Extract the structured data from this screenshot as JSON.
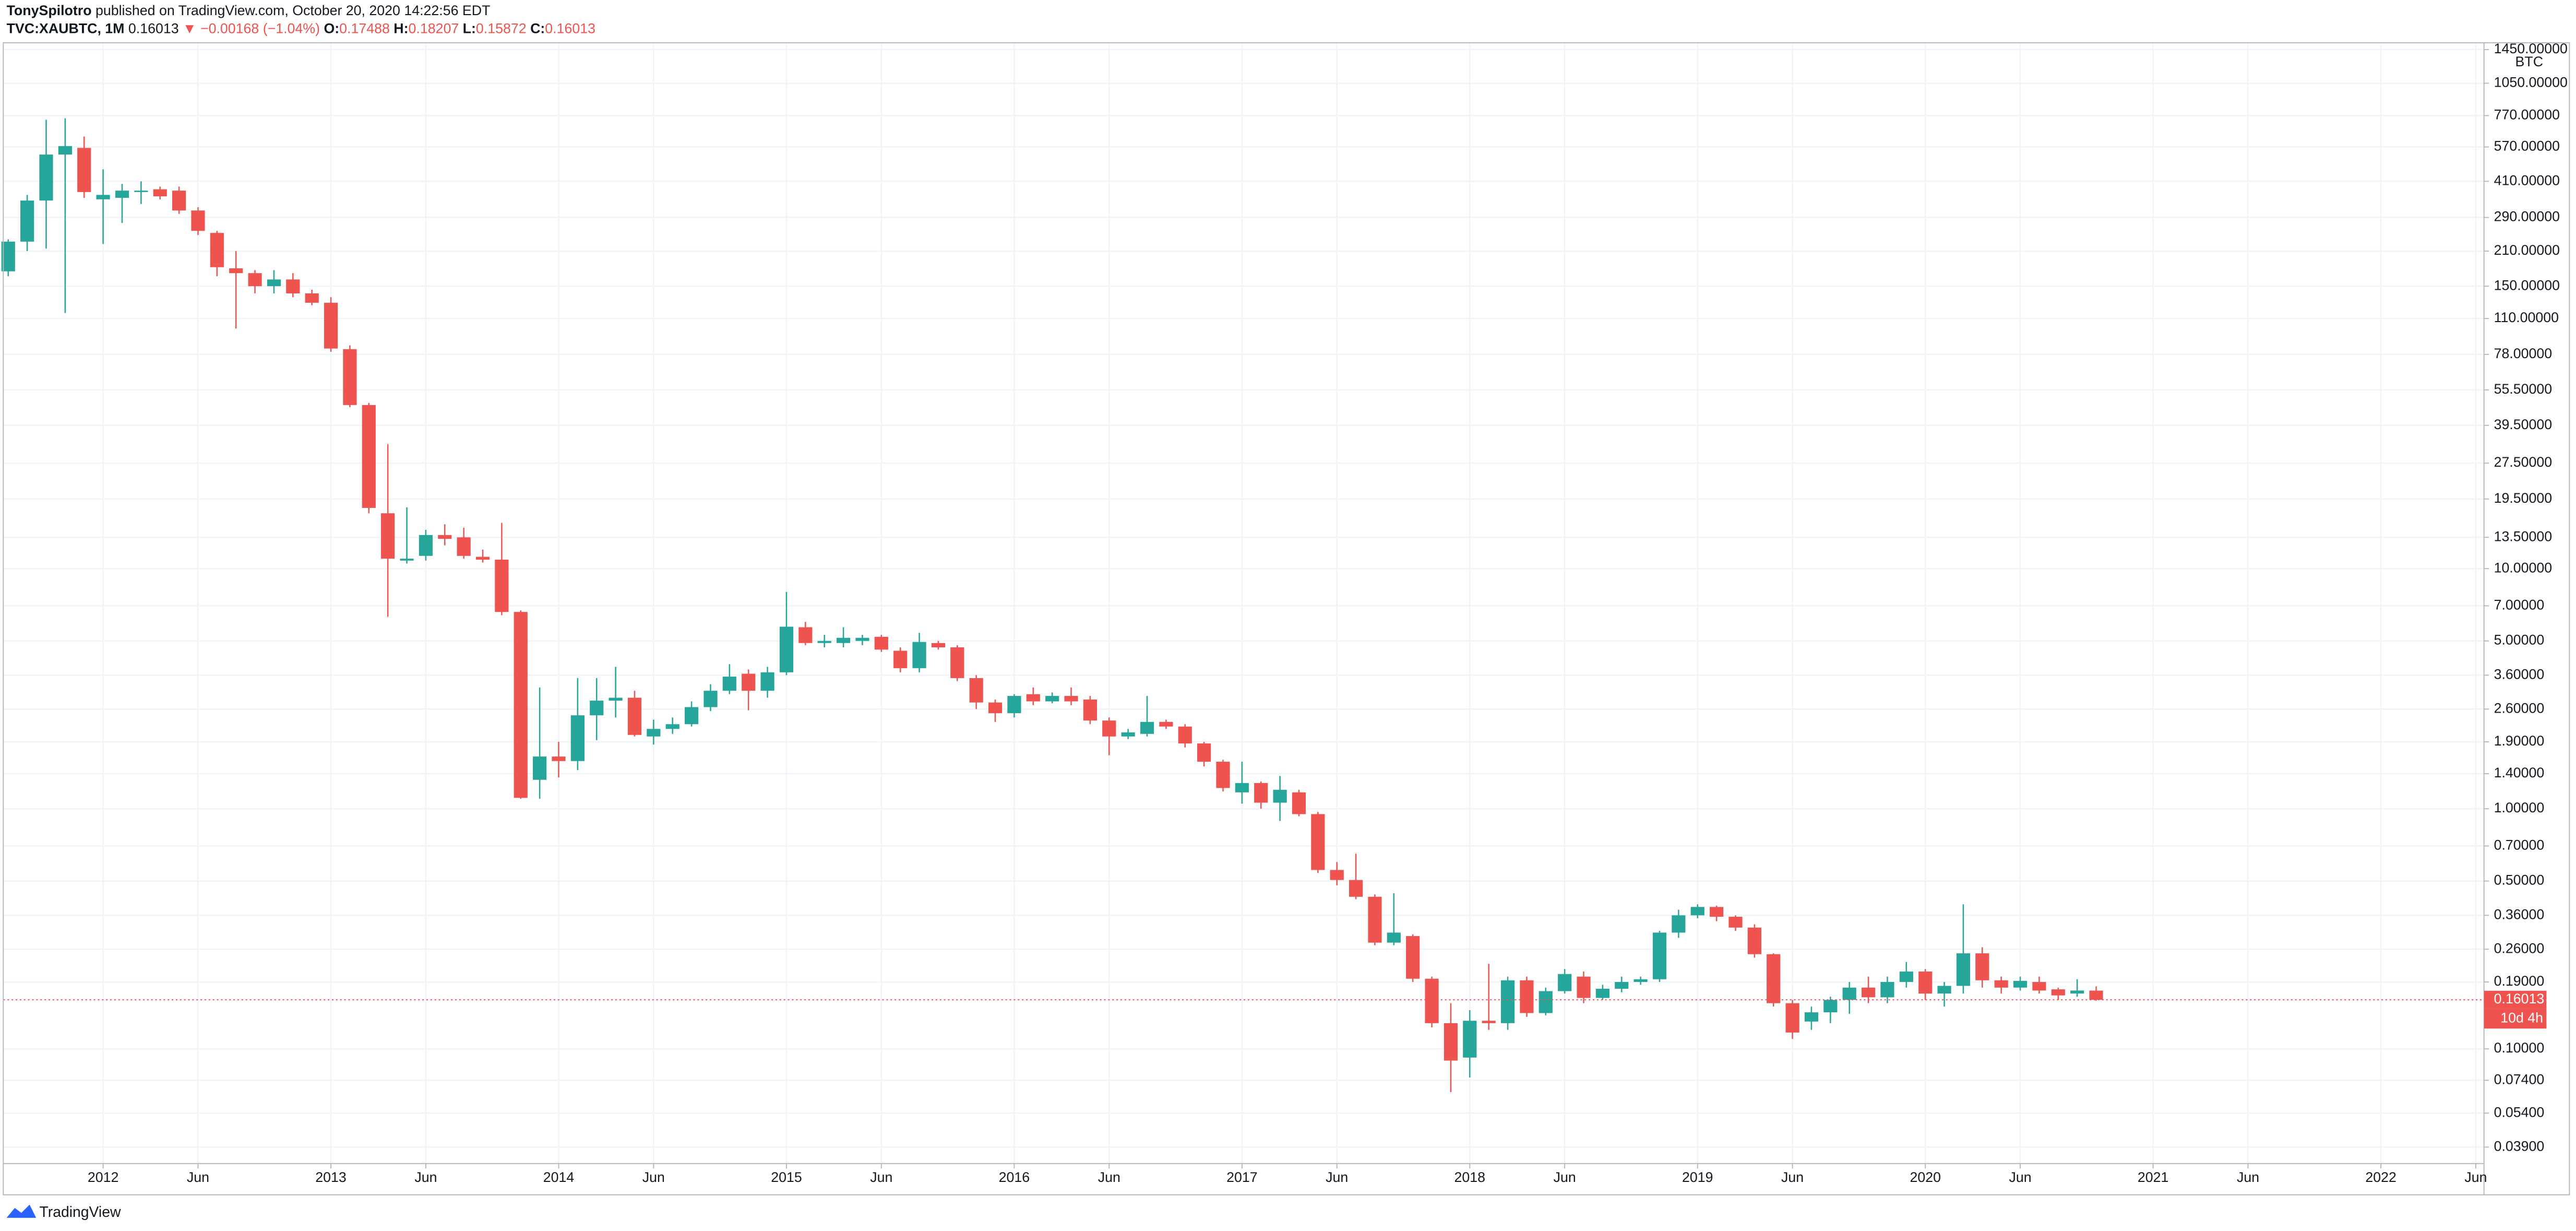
{
  "header": {
    "author": "TonySpilotro",
    "published": "published on TradingView.com, October 20, 2020 14:22:56 EDT",
    "symbol": "TVC:XAUBTC, 1M",
    "last": "0.16013",
    "change": "▼ −0.00168 (−1.04%)",
    "o_label": "O:",
    "o_value": "0.17488",
    "h_label": "H:",
    "h_value": "0.18207",
    "l_label": "L:",
    "l_value": "0.15872",
    "c_label": "C:",
    "c_value": "0.16013"
  },
  "footer": {
    "brand": "TradingView"
  },
  "chart_data": {
    "type": "candlestick",
    "log_scale": true,
    "grid": true,
    "up_color": "#26a69a",
    "down_color": "#ef5350",
    "y_unit": "BTC",
    "last_price_label": "0.16013",
    "countdown": "10d 4h",
    "x": [
      "2011-08",
      "2011-09",
      "2011-10",
      "2011-11",
      "2011-12",
      "2012-01",
      "2012-02",
      "2012-03",
      "2012-04",
      "2012-05",
      "2012-06",
      "2012-07",
      "2012-08",
      "2012-09",
      "2012-10",
      "2012-11",
      "2012-12",
      "2013-01",
      "2013-02",
      "2013-03",
      "2013-04",
      "2013-05",
      "2013-06",
      "2013-07",
      "2013-08",
      "2013-09",
      "2013-10",
      "2013-11",
      "2013-12",
      "2014-01",
      "2014-02",
      "2014-03",
      "2014-04",
      "2014-05",
      "2014-06",
      "2014-07",
      "2014-08",
      "2014-09",
      "2014-10",
      "2014-11",
      "2014-12",
      "2015-01",
      "2015-02",
      "2015-03",
      "2015-04",
      "2015-05",
      "2015-06",
      "2015-07",
      "2015-08",
      "2015-09",
      "2015-10",
      "2015-11",
      "2015-12",
      "2016-01",
      "2016-02",
      "2016-03",
      "2016-04",
      "2016-05",
      "2016-06",
      "2016-07",
      "2016-08",
      "2016-09",
      "2016-10",
      "2016-11",
      "2016-12",
      "2017-01",
      "2017-02",
      "2017-03",
      "2017-04",
      "2017-05",
      "2017-06",
      "2017-07",
      "2017-08",
      "2017-09",
      "2017-10",
      "2017-11",
      "2017-12",
      "2018-01",
      "2018-02",
      "2018-03",
      "2018-04",
      "2018-05",
      "2018-06",
      "2018-07",
      "2018-08",
      "2018-09",
      "2018-10",
      "2018-11",
      "2018-12",
      "2019-01",
      "2019-02",
      "2019-03",
      "2019-04",
      "2019-05",
      "2019-06",
      "2019-07",
      "2019-08",
      "2019-09",
      "2019-10",
      "2019-11",
      "2019-12",
      "2020-01",
      "2020-02",
      "2020-03",
      "2020-04",
      "2020-05",
      "2020-06",
      "2020-07",
      "2020-08",
      "2020-09",
      "2020-10"
    ],
    "open": [
      173,
      230,
      341,
      530,
      565,
      345,
      350,
      370,
      380,
      375,
      310,
      250,
      178,
      170,
      150,
      160,
      140,
      128,
      82,
      48,
      17,
      10.8,
      11.3,
      13.8,
      13.5,
      11.2,
      10.9,
      6.6,
      1.32,
      1.65,
      1.58,
      2.45,
      2.82,
      2.9,
      2.0,
      2.15,
      2.25,
      2.65,
      3.1,
      3.65,
      3.1,
      3.7,
      5.7,
      4.9,
      4.9,
      5.0,
      5.2,
      4.55,
      3.85,
      4.9,
      4.7,
      3.5,
      2.77,
      2.5,
      3.0,
      2.8,
      2.95,
      2.85,
      2.33,
      2.0,
      2.05,
      2.3,
      2.2,
      1.87,
      1.57,
      1.17,
      1.28,
      1.06,
      1.17,
      0.95,
      0.556,
      0.505,
      0.43,
      0.277,
      0.295,
      0.196,
      0.128,
      0.092,
      0.131,
      0.128,
      0.193,
      0.141,
      0.174,
      0.2,
      0.163,
      0.178,
      0.19,
      0.195,
      0.305,
      0.36,
      0.39,
      0.355,
      0.32,
      0.248,
      0.155,
      0.13,
      0.142,
      0.16,
      0.18,
      0.164,
      0.19,
      0.21,
      0.17,
      0.183,
      0.25,
      0.193,
      0.18,
      0.19,
      0.177,
      0.17,
      0.17488
    ],
    "high": [
      235,
      360,
      740,
      750,
      630,
      460,
      400,
      410,
      390,
      390,
      320,
      255,
      210,
      175,
      175,
      170,
      145,
      135,
      85,
      49,
      33,
      18,
      14.5,
      15.3,
      14.8,
      12,
      15.5,
      6.7,
      3.2,
      1.9,
      3.5,
      3.5,
      3.9,
      3.1,
      2.35,
      2.4,
      2.8,
      3.3,
      4.0,
      3.8,
      3.9,
      8.0,
      6.0,
      5.3,
      5.7,
      5.3,
      5.3,
      4.7,
      5.4,
      5.0,
      4.8,
      3.6,
      2.85,
      3.0,
      3.2,
      3.05,
      3.2,
      2.95,
      2.4,
      2.15,
      2.95,
      2.35,
      2.25,
      1.9,
      1.6,
      1.57,
      1.3,
      1.37,
      1.2,
      0.97,
      0.6,
      0.65,
      0.44,
      0.445,
      0.3,
      0.2,
      0.155,
      0.145,
      0.226,
      0.2,
      0.2,
      0.18,
      0.215,
      0.21,
      0.185,
      0.2,
      0.2,
      0.31,
      0.38,
      0.4,
      0.395,
      0.36,
      0.33,
      0.25,
      0.16,
      0.15,
      0.165,
      0.19,
      0.2,
      0.2,
      0.23,
      0.215,
      0.19,
      0.4,
      0.265,
      0.2,
      0.2,
      0.2,
      0.18,
      0.195,
      0.18207
    ],
    "low": [
      165,
      210,
      215,
      116,
      350,
      225,
      275,
      330,
      345,
      300,
      245,
      165,
      100,
      140,
      140,
      135,
      125,
      80,
      47,
      17,
      6.3,
      10.5,
      10.8,
      12.5,
      11,
      10.6,
      6.4,
      1.1,
      1.1,
      1.35,
      1.45,
      1.93,
      2.4,
      2.0,
      1.85,
      2.05,
      2.2,
      2.55,
      3.0,
      2.57,
      2.9,
      3.6,
      4.8,
      4.7,
      4.7,
      4.8,
      4.5,
      3.7,
      3.7,
      4.6,
      3.4,
      2.6,
      2.3,
      2.4,
      2.7,
      2.75,
      2.7,
      2.25,
      1.67,
      1.95,
      2.0,
      2.15,
      1.8,
      1.5,
      1.18,
      1.05,
      1.0,
      0.89,
      0.93,
      0.54,
      0.48,
      0.42,
      0.27,
      0.27,
      0.19,
      0.123,
      0.066,
      0.076,
      0.12,
      0.12,
      0.136,
      0.138,
      0.17,
      0.155,
      0.16,
      0.172,
      0.185,
      0.19,
      0.29,
      0.35,
      0.34,
      0.31,
      0.24,
      0.15,
      0.11,
      0.12,
      0.128,
      0.14,
      0.155,
      0.155,
      0.18,
      0.16,
      0.15,
      0.17,
      0.18,
      0.17,
      0.175,
      0.17,
      0.16,
      0.165,
      0.15872
    ],
    "close": [
      230,
      341,
      530,
      575,
      370,
      360,
      375,
      375,
      355,
      310,
      255,
      180,
      170,
      150,
      160,
      140,
      128,
      82.5,
      48,
      17.9,
      11,
      11,
      13.8,
      13.3,
      11.3,
      10.9,
      6.6,
      1.11,
      1.65,
      1.58,
      2.45,
      2.82,
      2.9,
      2.03,
      2.15,
      2.25,
      2.65,
      3.1,
      3.55,
      3.1,
      3.7,
      5.73,
      4.9,
      5.0,
      5.15,
      5.15,
      4.6,
      3.85,
      4.95,
      4.7,
      3.5,
      2.77,
      2.5,
      2.95,
      2.8,
      2.95,
      2.8,
      2.33,
      2.0,
      2.08,
      2.3,
      2.2,
      1.87,
      1.57,
      1.22,
      1.28,
      1.06,
      1.2,
      0.95,
      0.556,
      0.505,
      0.43,
      0.277,
      0.305,
      0.196,
      0.128,
      0.0894,
      0.131,
      0.128,
      0.193,
      0.141,
      0.174,
      0.205,
      0.163,
      0.178,
      0.19,
      0.195,
      0.305,
      0.36,
      0.39,
      0.355,
      0.32,
      0.248,
      0.155,
      0.117,
      0.142,
      0.16,
      0.18,
      0.164,
      0.19,
      0.21,
      0.17,
      0.183,
      0.25,
      0.193,
      0.18,
      0.192,
      0.175,
      0.167,
      0.175,
      0.16013
    ],
    "xlim": [
      "2011-08",
      "2022-06"
    ],
    "xticks": [
      {
        "value": "2012-01",
        "label": "2012"
      },
      {
        "value": "2012-06",
        "label": "Jun"
      },
      {
        "value": "2013-01",
        "label": "2013"
      },
      {
        "value": "2013-06",
        "label": "Jun"
      },
      {
        "value": "2014-01",
        "label": "2014"
      },
      {
        "value": "2014-06",
        "label": "Jun"
      },
      {
        "value": "2015-01",
        "label": "2015"
      },
      {
        "value": "2015-06",
        "label": "Jun"
      },
      {
        "value": "2016-01",
        "label": "2016"
      },
      {
        "value": "2016-06",
        "label": "Jun"
      },
      {
        "value": "2017-01",
        "label": "2017"
      },
      {
        "value": "2017-06",
        "label": "Jun"
      },
      {
        "value": "2018-01",
        "label": "2018"
      },
      {
        "value": "2018-06",
        "label": "Jun"
      },
      {
        "value": "2019-01",
        "label": "2019"
      },
      {
        "value": "2019-06",
        "label": "Jun"
      },
      {
        "value": "2020-01",
        "label": "2020"
      },
      {
        "value": "2020-06",
        "label": "Jun"
      },
      {
        "value": "2021-01",
        "label": "2021"
      },
      {
        "value": "2021-06",
        "label": "Jun"
      },
      {
        "value": "2022-01",
        "label": "2022"
      },
      {
        "value": "2022-06",
        "label": "Jun"
      }
    ],
    "ylim": [
      0.0333,
      1500
    ],
    "yticks": [
      {
        "value": 1450,
        "label": "1450.00000"
      },
      {
        "value": 1050,
        "label": "1050.00000"
      },
      {
        "value": 770,
        "label": "770.00000"
      },
      {
        "value": 570,
        "label": "570.00000"
      },
      {
        "value": 410,
        "label": "410.00000"
      },
      {
        "value": 290,
        "label": "290.00000"
      },
      {
        "value": 210,
        "label": "210.00000"
      },
      {
        "value": 150,
        "label": "150.00000"
      },
      {
        "value": 110,
        "label": "110.00000"
      },
      {
        "value": 78,
        "label": "78.00000"
      },
      {
        "value": 55.5,
        "label": "55.50000"
      },
      {
        "value": 39.5,
        "label": "39.50000"
      },
      {
        "value": 27.5,
        "label": "27.50000"
      },
      {
        "value": 19.5,
        "label": "19.50000"
      },
      {
        "value": 13.5,
        "label": "13.50000"
      },
      {
        "value": 10,
        "label": "10.00000"
      },
      {
        "value": 7,
        "label": "7.00000"
      },
      {
        "value": 5,
        "label": "5.00000"
      },
      {
        "value": 3.6,
        "label": "3.60000"
      },
      {
        "value": 2.6,
        "label": "2.60000"
      },
      {
        "value": 1.9,
        "label": "1.90000"
      },
      {
        "value": 1.4,
        "label": "1.40000"
      },
      {
        "value": 1,
        "label": "1.00000"
      },
      {
        "value": 0.7,
        "label": "0.70000"
      },
      {
        "value": 0.5,
        "label": "0.50000"
      },
      {
        "value": 0.36,
        "label": "0.36000"
      },
      {
        "value": 0.26,
        "label": "0.26000"
      },
      {
        "value": 0.19,
        "label": "0.19000"
      },
      {
        "value": 0.1,
        "label": "0.10000"
      },
      {
        "value": 0.074,
        "label": "0.07400"
      },
      {
        "value": 0.054,
        "label": "0.05400"
      },
      {
        "value": 0.039,
        "label": "0.03900"
      }
    ]
  }
}
